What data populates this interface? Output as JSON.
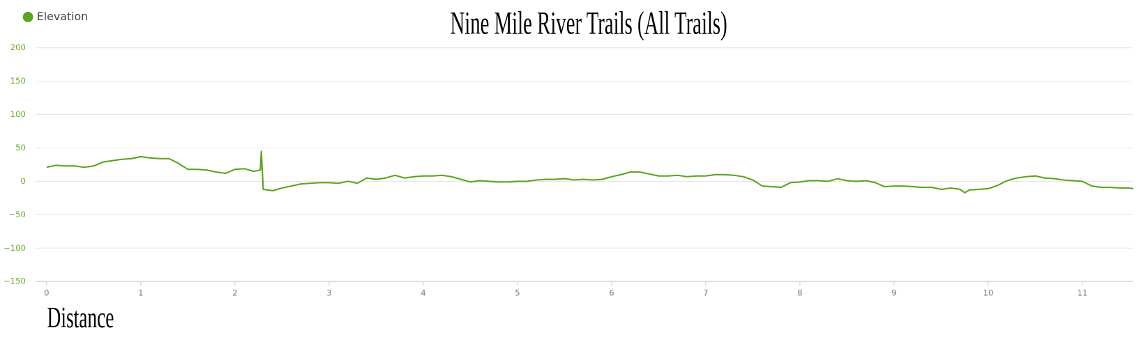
{
  "chart_data": {
    "type": "line",
    "title": "Nine Mile River Trails (All Trails)",
    "x_label": "Distance",
    "series": [
      {
        "name": "Elevation",
        "color": "#5aa51e",
        "x": [
          0,
          0.1,
          0.2,
          0.3,
          0.4,
          0.5,
          0.6,
          0.7,
          0.8,
          0.9,
          1.0,
          1.1,
          1.2,
          1.3,
          1.4,
          1.5,
          1.6,
          1.7,
          1.8,
          1.9,
          2.0,
          2.1,
          2.2,
          2.27,
          2.28,
          2.29,
          2.3,
          2.4,
          2.5,
          2.6,
          2.7,
          2.8,
          2.9,
          3.0,
          3.1,
          3.2,
          3.3,
          3.4,
          3.5,
          3.6,
          3.7,
          3.8,
          3.9,
          4.0,
          4.1,
          4.2,
          4.3,
          4.4,
          4.5,
          4.6,
          4.7,
          4.8,
          4.9,
          5.0,
          5.1,
          5.2,
          5.3,
          5.4,
          5.5,
          5.6,
          5.7,
          5.8,
          5.9,
          6.0,
          6.1,
          6.2,
          6.3,
          6.4,
          6.5,
          6.6,
          6.7,
          6.8,
          6.9,
          7.0,
          7.1,
          7.2,
          7.3,
          7.4,
          7.5,
          7.6,
          7.7,
          7.8,
          7.9,
          8.0,
          8.1,
          8.2,
          8.3,
          8.4,
          8.5,
          8.6,
          8.7,
          8.8,
          8.9,
          9.0,
          9.1,
          9.2,
          9.3,
          9.4,
          9.5,
          9.6,
          9.7,
          9.75,
          9.8,
          9.9,
          10.0,
          10.1,
          10.2,
          10.3,
          10.4,
          10.5,
          10.6,
          10.7,
          10.8,
          10.9,
          11.0,
          11.1,
          11.2,
          11.3,
          11.4,
          11.5,
          11.54
        ],
        "values": [
          21,
          24,
          23,
          23,
          21,
          23,
          29,
          31,
          33,
          34,
          37,
          35,
          34,
          34,
          27,
          18,
          18,
          17,
          14,
          12,
          18,
          19,
          15,
          17,
          45,
          17,
          -12,
          -14,
          -10,
          -7,
          -4,
          -3,
          -2,
          -2,
          -3,
          0,
          -3,
          5,
          3,
          5,
          9,
          5,
          7,
          8,
          8,
          9,
          7,
          3,
          -1,
          1,
          0,
          -1,
          -1,
          0,
          0,
          2,
          3,
          3,
          4,
          2,
          3,
          2,
          3,
          7,
          10,
          14,
          14,
          11,
          8,
          8,
          9,
          7,
          8,
          8,
          10,
          10,
          9,
          7,
          2,
          -7,
          -8,
          -9,
          -2,
          -1,
          1,
          1,
          0,
          4,
          1,
          0,
          1,
          -2,
          -8,
          -7,
          -7,
          -8,
          -9,
          -9,
          -12,
          -10,
          -12,
          -17,
          -13,
          -12,
          -11,
          -6,
          1,
          5,
          7,
          8,
          5,
          4,
          2,
          1,
          0,
          -7,
          -9,
          -9,
          -10,
          -10,
          -11
        ]
      }
    ],
    "xlim": [
      -0.12,
      11.54
    ],
    "xticks": [
      0,
      1,
      2,
      3,
      4,
      5,
      6,
      7,
      8,
      9,
      10,
      11
    ],
    "ylim": [
      -150,
      200
    ],
    "yticks": [
      {
        "value": -150,
        "label": "−150"
      },
      {
        "value": -100,
        "label": "−100"
      },
      {
        "value": -50,
        "label": "−50"
      },
      0,
      50,
      100,
      150,
      200
    ],
    "grid": true
  }
}
